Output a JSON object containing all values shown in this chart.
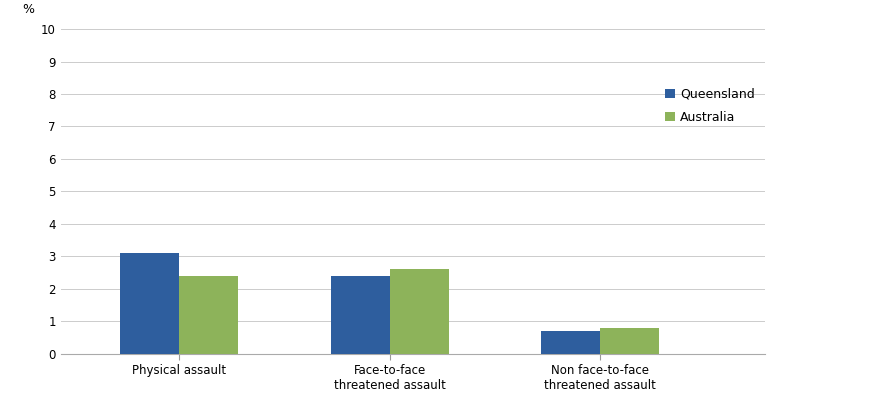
{
  "categories": [
    "Physical assault",
    "Face-to-face\nthreatened assault",
    "Non face-to-face\nthreatened assault"
  ],
  "queensland_values": [
    3.1,
    2.4,
    0.7
  ],
  "australia_values": [
    2.4,
    2.6,
    0.8
  ],
  "queensland_color": "#2E5E9E",
  "australia_color": "#8DB35A",
  "ylim": [
    0,
    10
  ],
  "yticks": [
    0,
    1,
    2,
    3,
    4,
    5,
    6,
    7,
    8,
    9,
    10
  ],
  "ylabel": "%",
  "legend_labels": [
    "Queensland",
    "Australia"
  ],
  "bar_width": 0.09,
  "background_color": "#ffffff",
  "grid_color": "#cccccc",
  "tick_label_fontsize": 8.5,
  "ylabel_fontsize": 9,
  "legend_fontsize": 9,
  "x_positions": [
    0.18,
    0.5,
    0.82
  ],
  "xlim": [
    0.0,
    1.07
  ]
}
